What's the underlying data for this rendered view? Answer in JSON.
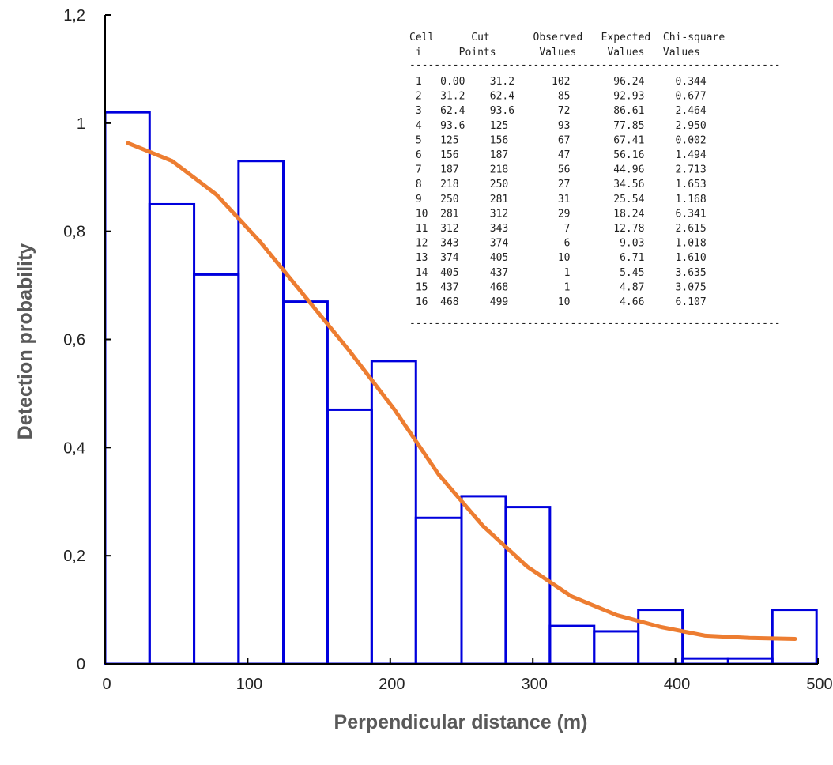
{
  "chart_data": {
    "type": "bar",
    "xlabel": "Perpendicular distance  (m)",
    "ylabel": "Detection probability",
    "xlim": [
      0,
      500
    ],
    "ylim": [
      0,
      1.2
    ],
    "x_ticks": [
      "0",
      "100",
      "200",
      "300",
      "400",
      "500"
    ],
    "y_ticks": [
      "0",
      "0,2",
      "0,4",
      "0,6",
      "0,8",
      "1",
      "1,2"
    ],
    "grid": false,
    "legend": "none",
    "colors": {
      "bars": "#0000dd",
      "curve": "#ed7d31",
      "axis": "#000000"
    },
    "bins": [
      {
        "x0": 0,
        "x1": 31.2,
        "value": 1.02
      },
      {
        "x0": 31.2,
        "x1": 62.4,
        "value": 0.85
      },
      {
        "x0": 62.4,
        "x1": 93.6,
        "value": 0.72
      },
      {
        "x0": 93.6,
        "x1": 125,
        "value": 0.93
      },
      {
        "x0": 125,
        "x1": 156,
        "value": 0.67
      },
      {
        "x0": 156,
        "x1": 187,
        "value": 0.47
      },
      {
        "x0": 187,
        "x1": 218,
        "value": 0.56
      },
      {
        "x0": 218,
        "x1": 250,
        "value": 0.27
      },
      {
        "x0": 250,
        "x1": 281,
        "value": 0.31
      },
      {
        "x0": 281,
        "x1": 312,
        "value": 0.29
      },
      {
        "x0": 312,
        "x1": 343,
        "value": 0.07
      },
      {
        "x0": 343,
        "x1": 374,
        "value": 0.06
      },
      {
        "x0": 374,
        "x1": 405,
        "value": 0.1
      },
      {
        "x0": 405,
        "x1": 437,
        "value": 0.01
      },
      {
        "x0": 437,
        "x1": 468,
        "value": 0.01
      },
      {
        "x0": 468,
        "x1": 499,
        "value": 0.1
      }
    ],
    "curve": {
      "x": [
        16,
        47,
        78,
        109,
        140,
        171,
        203,
        234,
        265,
        296,
        327,
        359,
        390,
        421,
        452,
        484
      ],
      "y": [
        0.963,
        0.93,
        0.868,
        0.78,
        0.68,
        0.58,
        0.47,
        0.35,
        0.255,
        0.18,
        0.125,
        0.09,
        0.068,
        0.052,
        0.048,
        0.046
      ]
    },
    "table": {
      "header1": "Cell      Cut       Observed   Expected  Chi-square",
      "header2": " i      Points       Values     Values   Values",
      "separator": "------------------------------------------------------------",
      "rows": [
        " 1   0.00    31.2      102       96.24     0.344",
        " 2   31.2    62.4       85       92.93     0.677",
        " 3   62.4    93.6       72       86.61     2.464",
        " 4   93.6    125        93       77.85     2.950",
        " 5   125     156        67       67.41     0.002",
        " 6   156     187        47       56.16     1.494",
        " 7   187     218        56       44.96     2.713",
        " 8   218     250        27       34.56     1.653",
        " 9   250     281        31       25.54     1.168",
        " 10  281     312        29       18.24     6.341",
        " 11  312     343         7       12.78     2.615",
        " 12  343     374         6        9.03     1.018",
        " 13  374     405        10        6.71     1.610",
        " 14  405     437         1        5.45     3.635",
        " 15  437     468         1        4.87     3.075",
        " 16  468     499        10        4.66     6.107"
      ]
    }
  }
}
